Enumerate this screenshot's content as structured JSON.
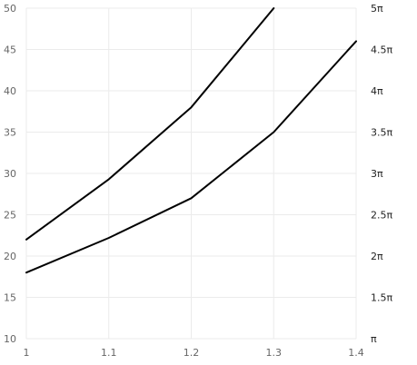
{
  "chart_data": {
    "type": "line",
    "x_ticks": [
      "1",
      "1.1",
      "1.2",
      "1.3",
      "1.4"
    ],
    "xlim": [
      1,
      1.4
    ],
    "ylim": [
      10,
      50
    ],
    "y_ticks": [
      "10",
      "15",
      "20",
      "25",
      "30",
      "35",
      "40",
      "45",
      "50"
    ],
    "y2_ticks": [
      "π",
      "1.5π",
      "2π",
      "2.5π",
      "3π",
      "3.5π",
      "4π",
      "4.5π",
      "5π"
    ],
    "grid": true,
    "series": [
      {
        "x": [
          1.0,
          1.1,
          1.2,
          1.3
        ],
        "y": [
          22,
          29.3,
          38,
          50
        ]
      },
      {
        "x": [
          1.0,
          1.1,
          1.2,
          1.3,
          1.4
        ],
        "y": [
          18,
          22.2,
          27,
          35,
          46
        ]
      }
    ]
  }
}
